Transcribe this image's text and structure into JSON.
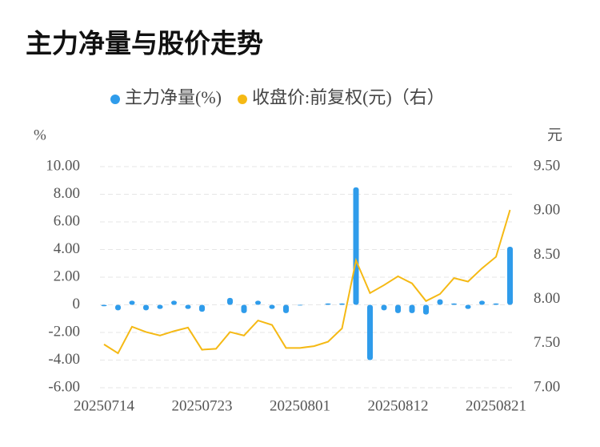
{
  "chart_data": {
    "type": "bar-line",
    "title": "主力净量与股价走势",
    "y_label": "%",
    "y2_label": "元",
    "categories": [
      "20250714",
      null,
      null,
      null,
      null,
      null,
      null,
      "20250723",
      null,
      null,
      null,
      null,
      null,
      null,
      "20250801",
      null,
      null,
      null,
      null,
      null,
      null,
      "20250812",
      null,
      null,
      null,
      null,
      null,
      null,
      "20250821",
      null
    ],
    "series": [
      {
        "name": "主力净量(%)",
        "type": "bar",
        "color": "#2f9ceb",
        "values": [
          -0.1,
          -0.4,
          0.3,
          -0.4,
          -0.3,
          0.3,
          -0.3,
          -0.5,
          0,
          0.5,
          -0.6,
          0.3,
          -0.3,
          -0.6,
          -0.05,
          0,
          0.1,
          0.1,
          8.5,
          -4.0,
          -0.4,
          -0.6,
          -0.6,
          -0.7,
          0.4,
          0.1,
          -0.3,
          0.3,
          0.1,
          4.2
        ]
      },
      {
        "name": "收盘价:前复权(元)（右）",
        "type": "line",
        "axis": "y2",
        "color": "#f5b914",
        "values": [
          7.49,
          7.39,
          7.69,
          7.63,
          7.59,
          7.64,
          7.68,
          7.43,
          7.44,
          7.63,
          7.59,
          7.76,
          7.71,
          7.45,
          7.45,
          7.47,
          7.52,
          7.67,
          8.44,
          8.07,
          8.16,
          8.26,
          8.18,
          7.98,
          8.06,
          8.24,
          8.2,
          8.35,
          8.48,
          9.01
        ]
      }
    ],
    "ylim": [
      -6,
      10
    ],
    "yticks": [
      {
        "value": -6,
        "label": "-6.00"
      },
      {
        "value": -4,
        "label": "-4.00"
      },
      {
        "value": -2,
        "label": "-2.00"
      },
      0,
      {
        "value": 2,
        "label": "2.00"
      },
      {
        "value": 4,
        "label": "4.00"
      },
      {
        "value": 6,
        "label": "6.00"
      },
      {
        "value": 8,
        "label": "8.00"
      },
      {
        "value": 10,
        "label": "10.00"
      }
    ],
    "y2lim": [
      7,
      9.5
    ],
    "y2ticks": [
      {
        "value": 7,
        "label": "7.00"
      },
      {
        "value": 7.5,
        "label": "7.50"
      },
      {
        "value": 8,
        "label": "8.00"
      },
      {
        "value": 8.5,
        "label": "8.50"
      },
      {
        "value": 9,
        "label": "9.00"
      },
      {
        "value": 9.5,
        "label": "9.50"
      }
    ],
    "grid": true,
    "legend": "top"
  }
}
